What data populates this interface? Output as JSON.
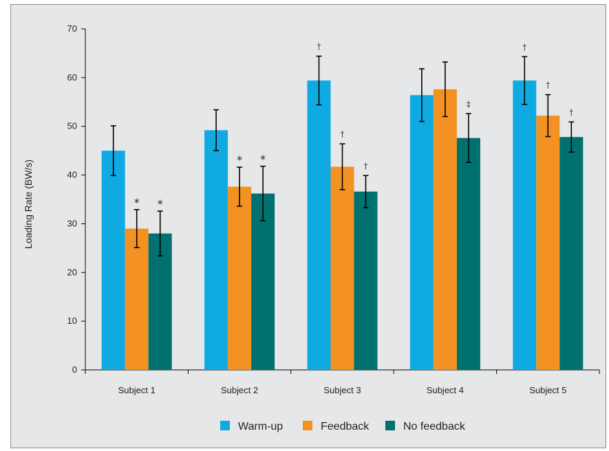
{
  "chart_data": {
    "type": "bar",
    "ylabel": "Loading Rate (BW/s)",
    "xlabel": "",
    "ylim": [
      0,
      70
    ],
    "yticks": [
      0,
      10,
      20,
      30,
      40,
      50,
      60,
      70
    ],
    "categories": [
      "Subject 1",
      "Subject 2",
      "Subject 3",
      "Subject 4",
      "Subject 5"
    ],
    "series": [
      {
        "name": "Warm-up",
        "color": "#10aae3",
        "values": [
          45.0,
          49.2,
          59.4,
          56.4,
          59.4
        ],
        "errors": [
          5.1,
          4.2,
          5.0,
          5.4,
          4.9
        ],
        "marks": [
          "",
          "",
          "†",
          "",
          "†"
        ]
      },
      {
        "name": "Feedback",
        "color": "#f39222",
        "values": [
          29.0,
          37.6,
          41.7,
          57.6,
          52.2
        ],
        "errors": [
          3.9,
          4.0,
          4.7,
          5.6,
          4.3
        ],
        "marks": [
          "*",
          "*",
          "†",
          "",
          "†"
        ]
      },
      {
        "name": "No feedback",
        "color": "#00716f",
        "values": [
          28.0,
          36.2,
          36.6,
          47.6,
          47.8
        ],
        "errors": [
          4.6,
          5.6,
          3.3,
          5.0,
          3.1
        ],
        "marks": [
          "*",
          "*",
          "†",
          "‡",
          "†"
        ]
      }
    ],
    "legend_position": "bottom",
    "grid": false
  }
}
